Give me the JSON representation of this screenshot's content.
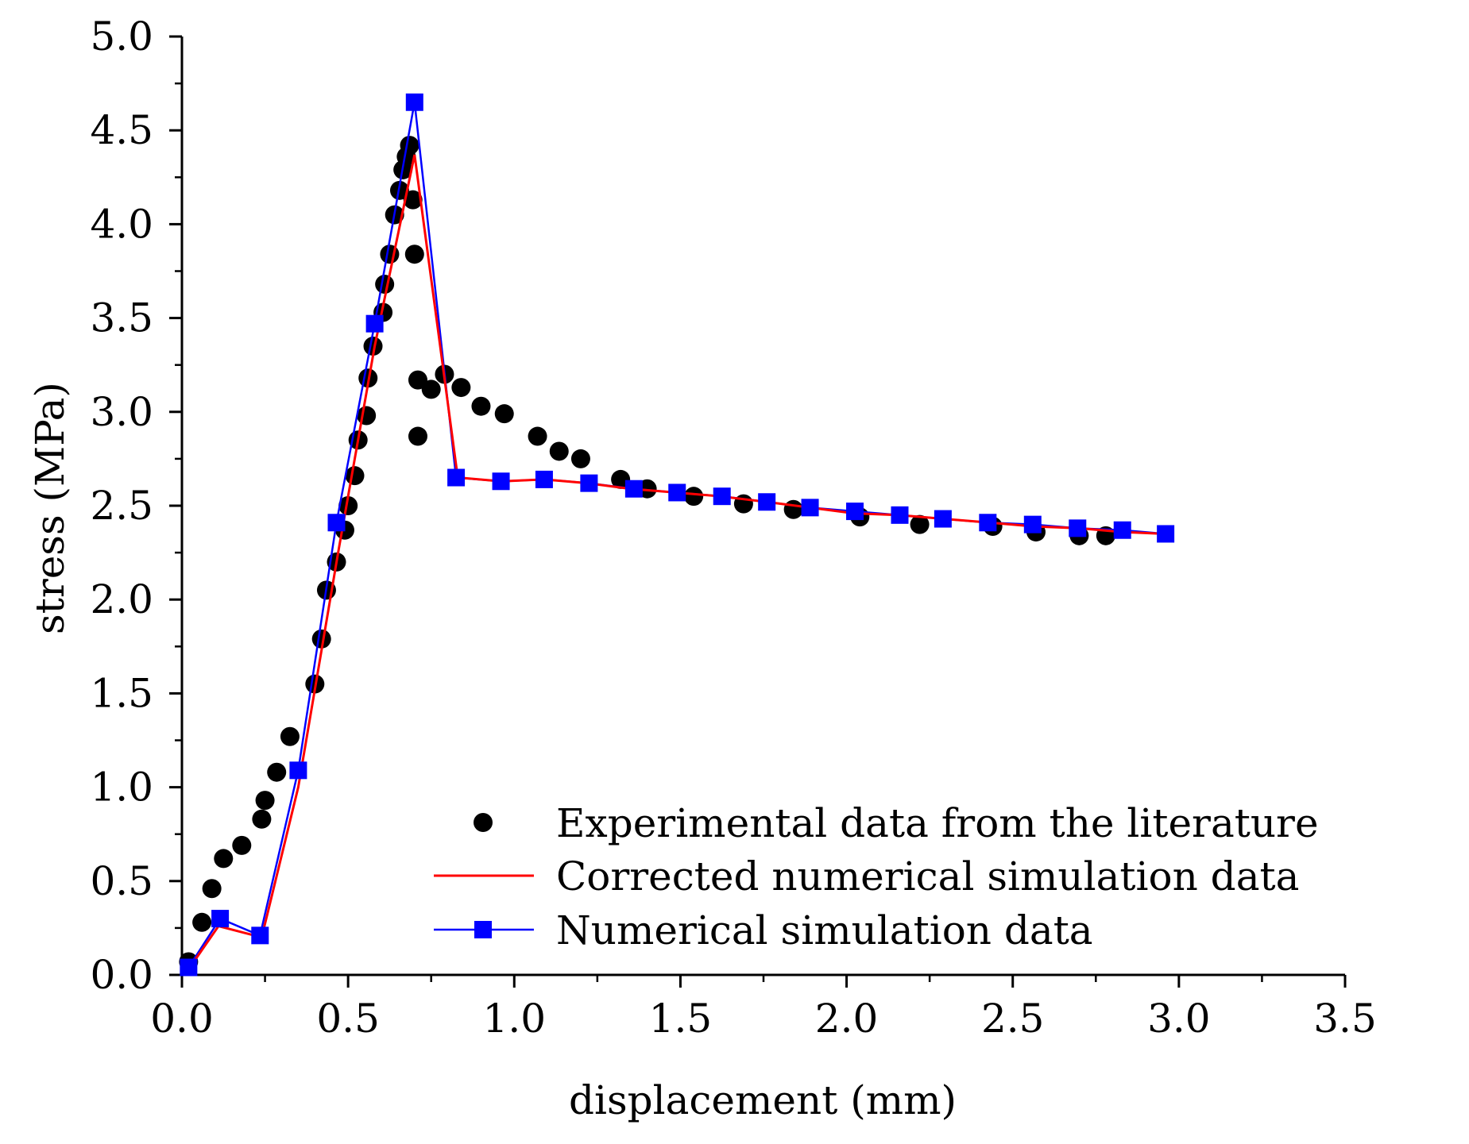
{
  "chart_data": {
    "type": "line",
    "xlabel": "displacement (mm)",
    "ylabel": "stress (MPa)",
    "xlim": [
      0,
      3.5
    ],
    "ylim": [
      0,
      5
    ],
    "x_ticks": [
      "0.0",
      "0.5",
      "1.0",
      "1.5",
      "2.0",
      "2.5",
      "3.0",
      "3.5"
    ],
    "y_ticks": [
      "0.0",
      "0.5",
      "1.0",
      "1.5",
      "2.0",
      "2.5",
      "3.0",
      "3.5",
      "4.0",
      "4.5",
      "5.0"
    ],
    "legend_position": "bottom-right",
    "series": [
      {
        "name": "Experimental data from the literature",
        "style": "scatter",
        "marker": "circle",
        "color": "#000000",
        "points": [
          [
            0.02,
            0.07
          ],
          [
            0.06,
            0.28
          ],
          [
            0.09,
            0.46
          ],
          [
            0.125,
            0.62
          ],
          [
            0.18,
            0.69
          ],
          [
            0.24,
            0.83
          ],
          [
            0.25,
            0.93
          ],
          [
            0.285,
            1.08
          ],
          [
            0.325,
            1.27
          ],
          [
            0.4,
            1.55
          ],
          [
            0.42,
            1.79
          ],
          [
            0.435,
            2.05
          ],
          [
            0.465,
            2.2
          ],
          [
            0.49,
            2.37
          ],
          [
            0.5,
            2.5
          ],
          [
            0.52,
            2.66
          ],
          [
            0.53,
            2.85
          ],
          [
            0.555,
            2.98
          ],
          [
            0.56,
            3.18
          ],
          [
            0.575,
            3.35
          ],
          [
            0.605,
            3.53
          ],
          [
            0.61,
            3.68
          ],
          [
            0.625,
            3.84
          ],
          [
            0.64,
            4.05
          ],
          [
            0.655,
            4.18
          ],
          [
            0.665,
            4.29
          ],
          [
            0.675,
            4.36
          ],
          [
            0.685,
            4.42
          ],
          [
            0.695,
            4.13
          ],
          [
            0.7,
            3.84
          ],
          [
            0.71,
            3.17
          ],
          [
            0.71,
            2.87
          ],
          [
            0.75,
            3.12
          ],
          [
            0.79,
            3.2
          ],
          [
            0.84,
            3.13
          ],
          [
            0.9,
            3.03
          ],
          [
            0.97,
            2.99
          ],
          [
            1.07,
            2.87
          ],
          [
            1.135,
            2.79
          ],
          [
            1.2,
            2.75
          ],
          [
            1.32,
            2.64
          ],
          [
            1.4,
            2.59
          ],
          [
            1.54,
            2.55
          ],
          [
            1.69,
            2.51
          ],
          [
            1.84,
            2.48
          ],
          [
            2.04,
            2.44
          ],
          [
            2.22,
            2.4
          ],
          [
            2.44,
            2.39
          ],
          [
            2.57,
            2.36
          ],
          [
            2.7,
            2.34
          ],
          [
            2.78,
            2.34
          ]
        ]
      },
      {
        "name": "Corrected numerical simulation data",
        "style": "line",
        "color": "#ff0000",
        "points": [
          [
            0.02,
            0.03
          ],
          [
            0.11,
            0.26
          ],
          [
            0.24,
            0.2
          ],
          [
            0.35,
            1.0
          ],
          [
            0.47,
            2.25
          ],
          [
            0.58,
            3.35
          ],
          [
            0.7,
            4.37
          ],
          [
            0.83,
            2.65
          ],
          [
            0.96,
            2.63
          ],
          [
            1.09,
            2.64
          ],
          [
            1.22,
            2.62
          ],
          [
            1.35,
            2.59
          ],
          [
            1.49,
            2.57
          ],
          [
            1.62,
            2.55
          ],
          [
            1.76,
            2.52
          ],
          [
            1.89,
            2.49
          ],
          [
            2.02,
            2.46
          ],
          [
            2.16,
            2.45
          ],
          [
            2.29,
            2.43
          ],
          [
            2.43,
            2.41
          ],
          [
            2.56,
            2.39
          ],
          [
            2.7,
            2.38
          ],
          [
            2.83,
            2.36
          ],
          [
            2.96,
            2.35
          ]
        ]
      },
      {
        "name": "Numerical simulation data",
        "style": "line+markers",
        "marker": "square",
        "color": "#0000ff",
        "points": [
          [
            0.02,
            0.04
          ],
          [
            0.115,
            0.3
          ],
          [
            0.235,
            0.21
          ],
          [
            0.35,
            1.09
          ],
          [
            0.465,
            2.41
          ],
          [
            0.58,
            3.47
          ],
          [
            0.7,
            4.65
          ],
          [
            0.825,
            2.65
          ],
          [
            0.96,
            2.63
          ],
          [
            1.09,
            2.64
          ],
          [
            1.225,
            2.62
          ],
          [
            1.36,
            2.59
          ],
          [
            1.49,
            2.57
          ],
          [
            1.625,
            2.55
          ],
          [
            1.76,
            2.52
          ],
          [
            1.89,
            2.49
          ],
          [
            2.025,
            2.47
          ],
          [
            2.16,
            2.45
          ],
          [
            2.29,
            2.43
          ],
          [
            2.425,
            2.41
          ],
          [
            2.56,
            2.4
          ],
          [
            2.695,
            2.38
          ],
          [
            2.83,
            2.37
          ],
          [
            2.96,
            2.35
          ]
        ]
      }
    ]
  }
}
